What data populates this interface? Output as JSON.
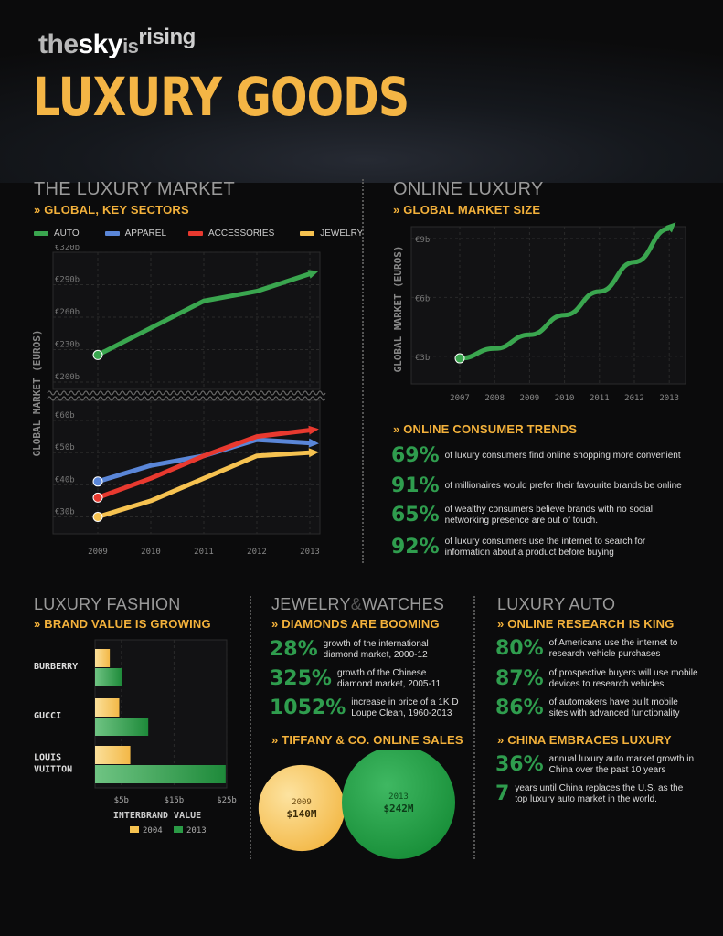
{
  "header": {
    "brand_the": "the",
    "brand_sky": "sky",
    "brand_is": "is",
    "brand_rising": "rising",
    "title": "LUXURY GOODS"
  },
  "luxury_market": {
    "section": "THE LUXURY MARKET",
    "subtitle": "» GLOBAL, KEY SECTORS",
    "ylabel": "GLOBAL MARKET (EUROS)",
    "legend": [
      "AUTO",
      "APPAREL",
      "ACCESSORIES",
      "JEWELRY"
    ]
  },
  "online_luxury": {
    "section": "ONLINE LUXURY",
    "subtitle": "» GLOBAL MARKET SIZE",
    "ylabel": "GLOBAL MARKET (EUROS)",
    "trends_title": "» ONLINE CONSUMER TRENDS",
    "trends": [
      {
        "pct": "69%",
        "text": "of luxury consumers find online shopping more convenient"
      },
      {
        "pct": "91%",
        "text": "of millionaires would prefer their favourite brands be online"
      },
      {
        "pct": "65%",
        "text": "of wealthy consumers believe brands with no social networking presence are out of touch."
      },
      {
        "pct": "92%",
        "text": "of luxury consumers use the internet to search for information about a product before buying"
      }
    ]
  },
  "fashion": {
    "section": "LUXURY FASHION",
    "subtitle": "» BRAND VALUE IS GROWING",
    "xlabel": "INTERBRAND VALUE",
    "legend": [
      "2004",
      "2013"
    ]
  },
  "jewelry": {
    "section_a": "JEWELRY",
    "section_amp": "&",
    "section_b": "WATCHES",
    "subtitle": "» DIAMONDS ARE BOOMING",
    "stats": [
      {
        "pct": "28%",
        "text": "growth of the international diamond market, 2000-12"
      },
      {
        "pct": "325%",
        "text": "growth of the Chinese diamond market, 2005-11"
      },
      {
        "pct": "1052%",
        "text": "increase in price of a 1K D Loupe Clean, 1960-2013"
      }
    ],
    "tiffany_title": "» TIFFANY & CO. ONLINE SALES",
    "tiffany": [
      {
        "year": "2009",
        "value": "$140M"
      },
      {
        "year": "2013",
        "value": "$242M"
      }
    ]
  },
  "auto": {
    "section": "LUXURY AUTO",
    "subtitle": "» ONLINE RESEARCH IS KING",
    "stats": [
      {
        "pct": "80%",
        "text": "of Americans use the internet to research vehicle purchases"
      },
      {
        "pct": "87%",
        "text": "of prospective buyers will use mobile devices to research vehicles"
      },
      {
        "pct": "86%",
        "text": "of automakers have built mobile sites with advanced functionality"
      }
    ],
    "china_title": "» CHINA EMBRACES LUXURY",
    "china": [
      {
        "pct": "36%",
        "text": "annual luxury auto market growth in China over the past 10 years"
      },
      {
        "pct": "7",
        "text": "years until China replaces the U.S. as the top luxury auto market in the world."
      }
    ]
  },
  "colors": {
    "accent": "#f3b13b",
    "auto": "#3aa64f",
    "apparel": "#5a86d8",
    "accessories": "#e8392f",
    "jewelry": "#f6c250",
    "stat_green": "#2f9d4e"
  },
  "chart_data": [
    {
      "type": "line",
      "title": "THE LUXURY MARKET",
      "ylabel": "GLOBAL MARKET (EUROS)",
      "x": [
        "2009",
        "2010",
        "2011",
        "2012",
        "2013"
      ],
      "axis_breaks": true,
      "upper_yticks": [
        "€200b",
        "€230b",
        "€260b",
        "€290b",
        "€320b"
      ],
      "lower_yticks": [
        "€30b",
        "€40b",
        "€50b",
        "€60b"
      ],
      "upper_ylim": [
        200,
        320
      ],
      "lower_ylim": [
        27,
        64
      ],
      "series": [
        {
          "name": "AUTO",
          "color": "#3aa64f",
          "values": [
            225,
            250,
            275,
            284,
            300
          ],
          "panel": "upper"
        },
        {
          "name": "APPAREL",
          "color": "#5a86d8",
          "values": [
            41,
            46,
            49,
            54,
            53
          ],
          "panel": "lower"
        },
        {
          "name": "ACCESSORIES",
          "color": "#e8392f",
          "values": [
            36,
            42,
            49,
            55,
            57
          ],
          "panel": "lower"
        },
        {
          "name": "JEWELRY",
          "color": "#f6c250",
          "values": [
            30,
            35,
            42,
            49,
            50
          ],
          "panel": "lower"
        }
      ]
    },
    {
      "type": "line",
      "title": "ONLINE LUXURY",
      "ylabel": "GLOBAL MARKET (EUROS)",
      "x": [
        "2007",
        "2008",
        "2009",
        "2010",
        "2011",
        "2012",
        "2013"
      ],
      "yticks": [
        "€3b",
        "€6b",
        "€9b"
      ],
      "ylim": [
        1.6,
        9.6
      ],
      "series": [
        {
          "name": "",
          "color": "#3aa64f",
          "values": [
            2.9,
            3.4,
            4.1,
            5.1,
            6.3,
            7.8,
            9.5
          ]
        }
      ]
    },
    {
      "type": "bar",
      "title": "LUXURY FASHION",
      "orientation": "horizontal",
      "xlabel": "INTERBRAND VALUE",
      "categories": [
        "BURBERRY",
        "GUCCI",
        "LOUIS VUITTON"
      ],
      "xticks": [
        "$5b",
        "$15b",
        "$25b"
      ],
      "xlim": [
        0,
        25
      ],
      "series": [
        {
          "name": "2004",
          "color": "#f6c250",
          "values": [
            2.8,
            4.6,
            6.7
          ]
        },
        {
          "name": "2013",
          "color": "#2a9a45",
          "values": [
            5.1,
            10.1,
            24.8
          ]
        }
      ]
    },
    {
      "type": "bubble",
      "title": "TIFFANY & CO. ONLINE SALES",
      "categories": [
        "2009",
        "2013"
      ],
      "values": [
        140,
        242
      ],
      "unit": "$M"
    }
  ]
}
